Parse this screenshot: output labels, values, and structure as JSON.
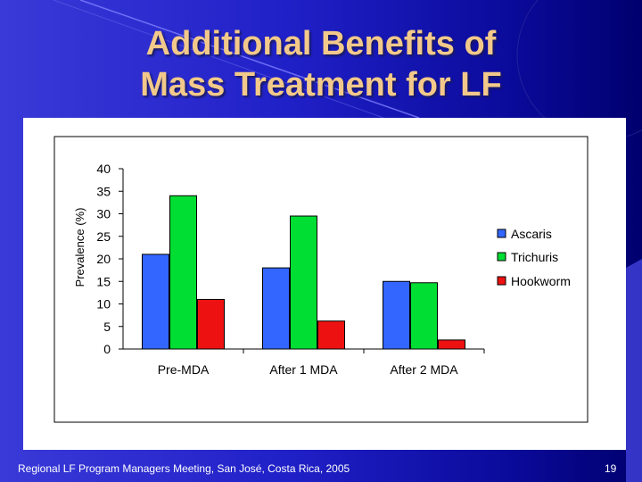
{
  "slide": {
    "title_line1": "Additional Benefits of",
    "title_line2": "Mass Treatment for LF",
    "footer": "Regional LF Program Managers Meeting, San José, Costa Rica, 2005",
    "page_number": "19"
  },
  "colors": {
    "ascaris": "#3366ff",
    "trichuris": "#00dd33",
    "hookworm": "#ee1111",
    "title": "#f2c98a"
  },
  "chart_data": {
    "type": "bar",
    "title": "",
    "xlabel": "",
    "ylabel": "Prevalence (%)",
    "ylim": [
      0,
      40
    ],
    "yticks": [
      0,
      5,
      10,
      15,
      20,
      25,
      30,
      35,
      40
    ],
    "categories": [
      "Pre-MDA",
      "After 1 MDA",
      "After 2 MDA"
    ],
    "series": [
      {
        "name": "Ascaris",
        "color": "#3366ff",
        "values": [
          21,
          18,
          15
        ]
      },
      {
        "name": "Trichuris",
        "color": "#00dd33",
        "values": [
          34,
          29.5,
          14.7
        ]
      },
      {
        "name": "Hookworm",
        "color": "#ee1111",
        "values": [
          11,
          6.2,
          2
        ]
      }
    ],
    "legend_position": "right"
  }
}
